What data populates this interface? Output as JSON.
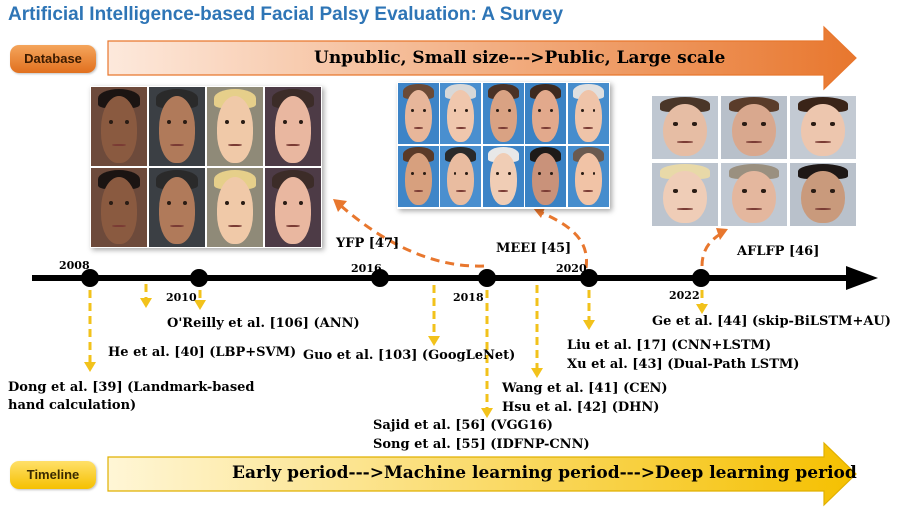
{
  "title": "Artificial Intelligence-based Facial Palsy Evaluation: A Survey",
  "database_label": "Database",
  "timeline_label": "Timeline",
  "database_arrow_text": "Unpublic, Small size--->Public, Large scale",
  "timeline_arrow_text": "Early period--->Machine learning period--->Deep learning period",
  "years": [
    "2008",
    "2010",
    "2016",
    "2018",
    "2020",
    "2022"
  ],
  "databases": {
    "yfp": "YFP [47]",
    "meei": "MEEI [45]",
    "aflfp": "AFLFP [46]"
  },
  "methods": {
    "dong": "Dong et al. [39] (Landmark-based",
    "dong2": "hand calculation)",
    "he": "He et al. [40] (LBP+SVM)",
    "oreilly": "O'Reilly et al. [106] (ANN)",
    "guo": "Guo et al. [103] (GoogLeNet)",
    "sajid": "Sajid et al. [56] (VGG16)",
    "song": "Song et al. [55] (IDFNP-CNN)",
    "wang": "Wang et al. [41] (CEN)",
    "hsu": "Hsu et al. [42] (DHN)",
    "liu": "Liu et al. [17] (CNN+LSTM)",
    "xu": "Xu et al. [43] (Dual-Path LSTM)",
    "ge": "Ge et al. [44] (skip-BiLSTM+AU)"
  },
  "colors": {
    "title": "#2e75b6",
    "database_arrow": "#e8772e",
    "timeline_arrow": "#f5c000",
    "dashed_yellow": "#f2c21b",
    "dashed_orange": "#e8772e"
  }
}
